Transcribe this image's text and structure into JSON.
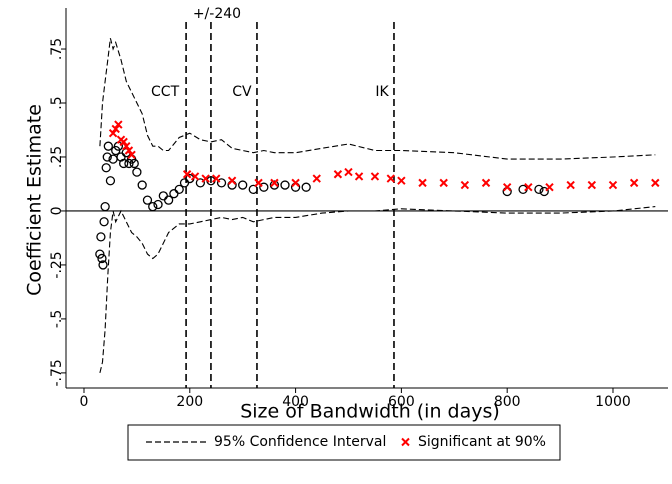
{
  "chart_data": {
    "type": "scatter",
    "x_label": "Size of Bandwidth (in days)",
    "y_label": "Coefficient Estimate",
    "xlim": [
      -34,
      1104
    ],
    "ylim": [
      -0.82,
      0.94
    ],
    "xticks": [
      0,
      200,
      400,
      600,
      800,
      1000
    ],
    "yticks": [
      {
        "value": 0.75,
        "label": ".75"
      },
      {
        "value": 0.5,
        "label": ".5"
      },
      {
        "value": 0.25,
        "label": ".25"
      },
      0,
      {
        "value": -0.25,
        "label": "-.25"
      },
      {
        "value": -0.5,
        "label": "-.5"
      },
      {
        "value": -0.75,
        "label": "-.75"
      }
    ],
    "zero_line": 0,
    "vlines": [
      {
        "x": 193,
        "label": "CCT"
      },
      {
        "x": 240,
        "label": "+/-240"
      },
      {
        "x": 327,
        "label": "CV"
      },
      {
        "x": 586,
        "label": "IK"
      }
    ],
    "ci": {
      "name": "95% Confidence Interval",
      "color": "#000000",
      "x": [
        30,
        35,
        40,
        45,
        50,
        55,
        60,
        70,
        80,
        90,
        100,
        110,
        120,
        130,
        140,
        150,
        160,
        180,
        200,
        220,
        240,
        260,
        280,
        300,
        320,
        340,
        360,
        400,
        450,
        500,
        550,
        600,
        700,
        800,
        900,
        1000,
        1080
      ],
      "upper": [
        0.3,
        0.5,
        0.6,
        0.7,
        0.8,
        0.75,
        0.78,
        0.7,
        0.6,
        0.55,
        0.5,
        0.45,
        0.35,
        0.3,
        0.3,
        0.28,
        0.28,
        0.34,
        0.36,
        0.33,
        0.32,
        0.33,
        0.29,
        0.28,
        0.27,
        0.28,
        0.27,
        0.27,
        0.29,
        0.31,
        0.28,
        0.28,
        0.27,
        0.24,
        0.24,
        0.25,
        0.26
      ],
      "lower": [
        -0.75,
        -0.7,
        -0.55,
        -0.3,
        -0.1,
        0,
        -0.05,
        0,
        -0.05,
        -0.1,
        -0.12,
        -0.15,
        -0.2,
        -0.22,
        -0.2,
        -0.15,
        -0.1,
        -0.06,
        -0.06,
        -0.05,
        -0.04,
        -0.03,
        -0.04,
        -0.03,
        -0.05,
        -0.04,
        -0.03,
        -0.03,
        -0.01,
        0,
        0,
        0.01,
        0,
        -0.01,
        -0.01,
        0,
        0.02
      ]
    },
    "estimates": {
      "color": "#000000",
      "x": [
        30,
        32,
        34,
        36,
        38,
        40,
        42,
        44,
        46,
        50,
        55,
        60,
        65,
        70,
        75,
        80,
        85,
        90,
        95,
        100,
        110,
        120,
        130,
        140,
        150,
        160,
        170,
        180,
        190,
        200,
        220,
        240,
        260,
        280,
        300,
        320,
        340,
        360,
        380,
        400,
        420,
        800,
        830,
        860,
        870
      ],
      "values": [
        -0.2,
        -0.12,
        -0.22,
        -0.25,
        -0.05,
        0.02,
        0.2,
        0.25,
        0.3,
        0.14,
        0.24,
        0.28,
        0.3,
        0.25,
        0.22,
        0.27,
        0.22,
        0.24,
        0.22,
        0.18,
        0.12,
        0.05,
        0.02,
        0.03,
        0.07,
        0.05,
        0.08,
        0.1,
        0.13,
        0.15,
        0.13,
        0.14,
        0.13,
        0.12,
        0.12,
        0.1,
        0.11,
        0.12,
        0.12,
        0.11,
        0.11,
        0.09,
        0.1,
        0.1,
        0.09
      ]
    },
    "significant": {
      "name": "Significant at 90%",
      "color": "#ff0000",
      "x": [
        55,
        60,
        65,
        70,
        75,
        80,
        85,
        90,
        195,
        210,
        230,
        250,
        280,
        330,
        360,
        400,
        440,
        480,
        500,
        520,
        550,
        580,
        600,
        640,
        680,
        720,
        760,
        800,
        840,
        880,
        920,
        960,
        1000,
        1040,
        1080
      ],
      "values": [
        0.36,
        0.38,
        0.4,
        0.33,
        0.32,
        0.3,
        0.28,
        0.26,
        0.17,
        0.16,
        0.15,
        0.15,
        0.14,
        0.13,
        0.13,
        0.13,
        0.15,
        0.17,
        0.18,
        0.16,
        0.16,
        0.15,
        0.14,
        0.13,
        0.13,
        0.12,
        0.13,
        0.11,
        0.11,
        0.11,
        0.12,
        0.12,
        0.12,
        0.13,
        0.13
      ]
    }
  }
}
